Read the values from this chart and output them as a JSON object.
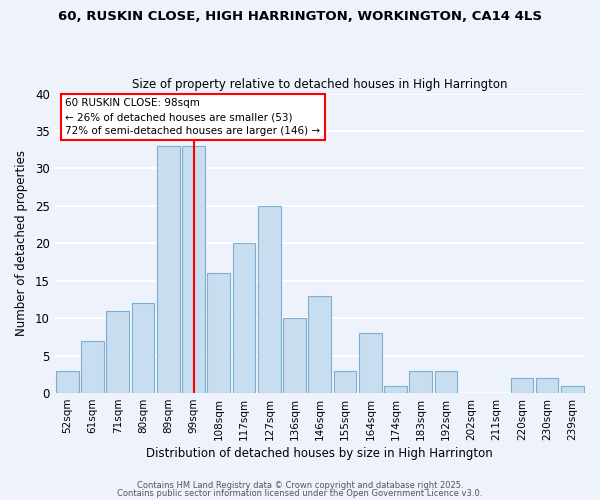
{
  "title": "60, RUSKIN CLOSE, HIGH HARRINGTON, WORKINGTON, CA14 4LS",
  "subtitle": "Size of property relative to detached houses in High Harrington",
  "xlabel": "Distribution of detached houses by size in High Harrington",
  "ylabel": "Number of detached properties",
  "bar_labels": [
    "52sqm",
    "61sqm",
    "71sqm",
    "80sqm",
    "89sqm",
    "99sqm",
    "108sqm",
    "117sqm",
    "127sqm",
    "136sqm",
    "146sqm",
    "155sqm",
    "164sqm",
    "174sqm",
    "183sqm",
    "192sqm",
    "202sqm",
    "211sqm",
    "220sqm",
    "230sqm",
    "239sqm"
  ],
  "bar_values": [
    3,
    7,
    11,
    12,
    33,
    33,
    16,
    20,
    25,
    10,
    13,
    3,
    8,
    1,
    3,
    3,
    0,
    0,
    2,
    2,
    1
  ],
  "bar_color": "#c8ddf0",
  "bar_edge_color": "#7ab0d4",
  "background_color": "#eef2fb",
  "grid_color": "#ffffff",
  "ylim": [
    0,
    40
  ],
  "yticks": [
    0,
    5,
    10,
    15,
    20,
    25,
    30,
    35,
    40
  ],
  "red_line_index": 5,
  "annotation_title": "60 RUSKIN CLOSE: 98sqm",
  "annotation_line1": "← 26% of detached houses are smaller (53)",
  "annotation_line2": "72% of semi-detached houses are larger (146) →",
  "footer1": "Contains HM Land Registry data © Crown copyright and database right 2025.",
  "footer2": "Contains public sector information licensed under the Open Government Licence v3.0."
}
